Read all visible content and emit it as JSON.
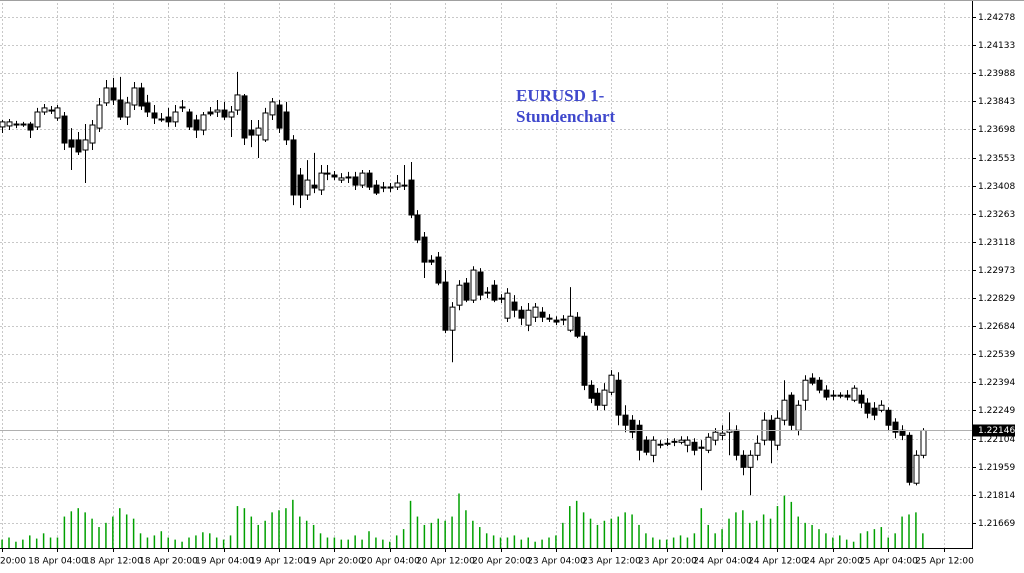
{
  "chart_data": {
    "type": "candlestick",
    "annotation_lines": [
      "EURUSD 1-",
      "Stundenchart"
    ],
    "annotation_color": "#3f48cc",
    "up_color": "#ffffff",
    "down_color": "#000000",
    "wick_color": "#000000",
    "grid": true,
    "current_price": 1.22146,
    "ylim": [
      1.2154,
      1.2435
    ],
    "yticks": [
      1.24278,
      1.24133,
      1.23988,
      1.23843,
      1.23698,
      1.23553,
      1.23408,
      1.23263,
      1.23118,
      1.22973,
      1.22829,
      1.22684,
      1.22539,
      1.22394,
      1.22249,
      1.22104,
      1.21959,
      1.21814,
      1.21669
    ],
    "xlim": [
      -0.3,
      140.1
    ],
    "xticks": [
      {
        "value": 0,
        "label": "20:00"
      },
      {
        "value": 8,
        "label": "18 Apr 04:00"
      },
      {
        "value": 16,
        "label": "18 Apr 12:00"
      },
      {
        "value": 24,
        "label": "18 Apr 20:00"
      },
      {
        "value": 32,
        "label": "19 Apr 04:00"
      },
      {
        "value": 40,
        "label": "19 Apr 12:00"
      },
      {
        "value": 48,
        "label": "19 Apr 20:00"
      },
      {
        "value": 56,
        "label": "20 Apr 04:00"
      },
      {
        "value": 64,
        "label": "20 Apr 12:00"
      },
      {
        "value": 72,
        "label": "20 Apr 20:00"
      },
      {
        "value": 80,
        "label": "23 Apr 04:00"
      },
      {
        "value": 88,
        "label": "23 Apr 12:00"
      },
      {
        "value": 96,
        "label": "23 Apr 20:00"
      },
      {
        "value": 104,
        "label": "24 Apr 04:00"
      },
      {
        "value": 112,
        "label": "24 Apr 12:00"
      },
      {
        "value": 120,
        "label": "24 Apr 20:00"
      },
      {
        "value": 128,
        "label": "25 Apr 04:00"
      },
      {
        "value": 136,
        "label": "25 Apr 12:00"
      }
    ],
    "open": [
      1.23711,
      1.23716,
      1.23726,
      1.23721,
      1.23726,
      1.23711,
      1.23788,
      1.23798,
      1.23757,
      1.23767,
      1.23644,
      1.23644,
      1.23592,
      1.23628,
      1.23705,
      1.23835,
      1.23912,
      1.2385,
      1.23762,
      1.23824,
      1.23912,
      1.23835,
      1.23783,
      1.23752,
      1.23762,
      1.23737,
      1.23814,
      1.23788,
      1.23747,
      1.23695,
      1.23788,
      1.23788,
      1.23798,
      1.23762,
      1.23798,
      1.23871,
      1.23695,
      1.23669,
      1.23644,
      1.23773,
      1.23824,
      1.23788,
      1.23644,
      1.23463,
      1.2336,
      1.23411,
      1.23386,
      1.23473,
      1.23463,
      1.23437,
      1.23453,
      1.23453,
      1.23411,
      1.23473,
      1.23411,
      1.23401,
      1.23401,
      1.23401,
      1.23411,
      1.23437,
      1.23257,
      1.23143,
      1.23024,
      1.2304,
      1.22911,
      1.22663,
      1.22792,
      1.22906,
      1.22818,
      1.22963,
      1.22859,
      1.22895,
      1.22828,
      1.22725,
      1.22808,
      1.22766,
      1.22689,
      1.2273,
      1.22756,
      1.22725,
      1.22715,
      1.2272,
      1.22663,
      1.2273,
      1.22632,
      1.22379,
      1.22338,
      1.22276,
      1.22343,
      1.22405,
      1.22225,
      1.22199,
      1.22173,
      1.22096,
      1.22018,
      1.22075,
      1.2208,
      1.22085,
      1.22085,
      1.2207,
      1.22085,
      1.2206,
      1.22044,
      1.22096,
      1.22121,
      1.22137,
      1.22147,
      1.22018,
      1.21956,
      1.22018,
      1.22096,
      1.22199,
      1.2207,
      1.22199,
      1.22328,
      1.22147,
      1.22302,
      1.22416,
      1.22405,
      1.22354,
      1.22328,
      1.22328,
      1.22328,
      1.22302,
      1.22328,
      1.22287,
      1.22261,
      1.2225,
      1.2225,
      1.22189,
      1.22147,
      1.22121,
      1.21874,
      1.22018
    ],
    "high": [
      1.23747,
      1.23752,
      1.23742,
      1.23737,
      1.23737,
      1.23809,
      1.23829,
      1.23819,
      1.23824,
      1.23788,
      1.23705,
      1.23685,
      1.23726,
      1.23747,
      1.2386,
      1.23953,
      1.23964,
      1.23969,
      1.23866,
      1.23943,
      1.23938,
      1.23876,
      1.23824,
      1.23783,
      1.23809,
      1.23824,
      1.2385,
      1.23804,
      1.23773,
      1.23788,
      1.23814,
      1.2385,
      1.2384,
      1.23819,
      1.23995,
      1.23881,
      1.23747,
      1.23747,
      1.23809,
      1.2386,
      1.2385,
      1.2384,
      1.23669,
      1.23499,
      1.2354,
      1.23577,
      1.23515,
      1.23515,
      1.23484,
      1.23473,
      1.23479,
      1.23479,
      1.23489,
      1.23489,
      1.23437,
      1.23427,
      1.23422,
      1.23463,
      1.23515,
      1.2353,
      1.23282,
      1.23169,
      1.2305,
      1.23066,
      1.22973,
      1.22808,
      1.22921,
      1.22932,
      1.22993,
      1.22983,
      1.22885,
      1.22921,
      1.22849,
      1.2288,
      1.22844,
      1.22787,
      1.22803,
      1.22803,
      1.22782,
      1.22746,
      1.22735,
      1.22741,
      1.22885,
      1.22756,
      1.22653,
      1.22405,
      1.22364,
      1.2239,
      1.22457,
      1.22446,
      1.22276,
      1.22225,
      1.22199,
      1.22116,
      1.22116,
      1.22096,
      1.22106,
      1.22106,
      1.22116,
      1.22116,
      1.22106,
      1.22096,
      1.22132,
      1.22158,
      1.22173,
      1.2224,
      1.22173,
      1.22044,
      1.22044,
      1.22121,
      1.2224,
      1.22225,
      1.2225,
      1.22405,
      1.22343,
      1.22302,
      1.22431,
      1.22441,
      1.22421,
      1.22379,
      1.22354,
      1.22343,
      1.22354,
      1.22379,
      1.22354,
      1.22312,
      1.22292,
      1.22302,
      1.22266,
      1.22209,
      1.22173,
      1.22137,
      1.22044,
      1.22158
    ],
    "low": [
      1.2368,
      1.23695,
      1.23705,
      1.23711,
      1.23654,
      1.23695,
      1.23773,
      1.23778,
      1.23742,
      1.23592,
      1.23489,
      1.23566,
      1.23422,
      1.23592,
      1.23685,
      1.23819,
      1.23824,
      1.23747,
      1.23721,
      1.23798,
      1.23798,
      1.23762,
      1.23726,
      1.23737,
      1.23711,
      1.23711,
      1.23788,
      1.23695,
      1.23654,
      1.23669,
      1.23767,
      1.23762,
      1.23747,
      1.23659,
      1.23773,
      1.23618,
      1.23607,
      1.23551,
      1.23633,
      1.23747,
      1.2368,
      1.23618,
      1.23308,
      1.23293,
      1.23334,
      1.2337,
      1.2336,
      1.23437,
      1.23437,
      1.23422,
      1.23422,
      1.23386,
      1.23396,
      1.23386,
      1.2336,
      1.23375,
      1.23375,
      1.23386,
      1.23386,
      1.23241,
      1.23112,
      1.22932,
      1.22999,
      1.22895,
      1.22648,
      1.22498,
      1.22766,
      1.22808,
      1.22803,
      1.22818,
      1.22828,
      1.22808,
      1.22803,
      1.22705,
      1.2273,
      1.22689,
      1.22658,
      1.22705,
      1.22705,
      1.22705,
      1.22689,
      1.22689,
      1.22653,
      1.22622,
      1.22354,
      1.22287,
      1.2225,
      1.2225,
      1.22328,
      1.22173,
      1.22137,
      1.22106,
      1.21992,
      1.22018,
      1.21982,
      1.22054,
      1.22065,
      1.22065,
      1.22075,
      1.22034,
      1.22018,
      1.21838,
      1.22029,
      1.2207,
      1.22096,
      1.22018,
      1.21992,
      1.21915,
      1.21812,
      1.21992,
      1.2207,
      1.21977,
      1.22044,
      1.22173,
      1.22147,
      1.22121,
      1.2225,
      1.22379,
      1.22338,
      1.22302,
      1.22302,
      1.22312,
      1.22302,
      1.22292,
      1.22261,
      1.22209,
      1.22199,
      1.2224,
      1.22147,
      1.22106,
      1.22096,
      1.21863,
      1.21863,
      1.22003
    ],
    "close": [
      1.23737,
      1.23737,
      1.23721,
      1.23726,
      1.23695,
      1.23788,
      1.23809,
      1.23798,
      1.23809,
      1.23628,
      1.23607,
      1.23582,
      1.23644,
      1.23721,
      1.23824,
      1.23912,
      1.2385,
      1.23762,
      1.23835,
      1.23912,
      1.23819,
      1.23788,
      1.23757,
      1.23747,
      1.23737,
      1.23788,
      1.23814,
      1.23711,
      1.23695,
      1.23773,
      1.23778,
      1.23798,
      1.23762,
      1.23788,
      1.23876,
      1.23654,
      1.23669,
      1.23705,
      1.23783,
      1.2384,
      1.23705,
      1.23644,
      1.2336,
      1.2336,
      1.23437,
      1.23396,
      1.23473,
      1.23473,
      1.23453,
      1.23448,
      1.23453,
      1.23411,
      1.23473,
      1.23401,
      1.2337,
      1.23401,
      1.23396,
      1.23422,
      1.23411,
      1.23257,
      1.23128,
      1.23014,
      1.23014,
      1.22906,
      1.22663,
      1.22782,
      1.22895,
      1.22818,
      1.22973,
      1.22844,
      1.22859,
      1.22818,
      1.22828,
      1.22854,
      1.22766,
      1.22725,
      1.22766,
      1.22782,
      1.2273,
      1.22725,
      1.22705,
      1.22715,
      1.22735,
      1.22632,
      1.22379,
      1.22312,
      1.22276,
      1.22354,
      1.22431,
      1.22225,
      1.22173,
      1.22137,
      1.22044,
      1.22034,
      1.22096,
      1.22075,
      1.2208,
      1.2209,
      1.22096,
      1.22096,
      1.22044,
      1.22054,
      1.22111,
      1.22137,
      1.22132,
      1.22147,
      1.22018,
      1.21956,
      1.22018,
      1.2208,
      1.22199,
      1.22096,
      1.22209,
      1.22302,
      1.22173,
      1.22276,
      1.22405,
      1.2239,
      1.22354,
      1.22318,
      1.22328,
      1.22328,
      1.22318,
      1.22364,
      1.22287,
      1.22235,
      1.22225,
      1.22276,
      1.22173,
      1.22137,
      1.22121,
      1.21879,
      1.22018,
      1.22146
    ],
    "y2lim": [
      0,
      520
    ],
    "volume": {
      "color": "#00a000",
      "values": [
        8,
        10,
        6,
        8,
        12,
        9,
        14,
        10,
        10,
        30,
        35,
        38,
        34,
        28,
        20,
        24,
        30,
        38,
        32,
        28,
        14,
        10,
        12,
        16,
        10,
        8,
        6,
        10,
        12,
        15,
        14,
        10,
        8,
        12,
        40,
        38,
        30,
        22,
        26,
        34,
        36,
        38,
        46,
        30,
        26,
        22,
        14,
        10,
        10,
        8,
        8,
        12,
        8,
        16,
        10,
        8,
        6,
        12,
        18,
        45,
        30,
        22,
        24,
        28,
        26,
        30,
        52,
        36,
        26,
        20,
        14,
        12,
        10,
        10,
        12,
        8,
        10,
        6,
        8,
        10,
        12,
        24,
        40,
        45,
        34,
        28,
        22,
        26,
        28,
        30,
        34,
        32,
        22,
        14,
        10,
        8,
        8,
        10,
        12,
        10,
        14,
        38,
        22,
        14,
        18,
        28,
        34,
        36,
        24,
        26,
        32,
        28,
        40,
        50,
        44,
        30,
        24,
        22,
        18,
        14,
        10,
        12,
        8,
        6,
        14,
        16,
        18,
        20,
        10,
        14,
        30,
        32,
        34,
        14
      ]
    }
  }
}
